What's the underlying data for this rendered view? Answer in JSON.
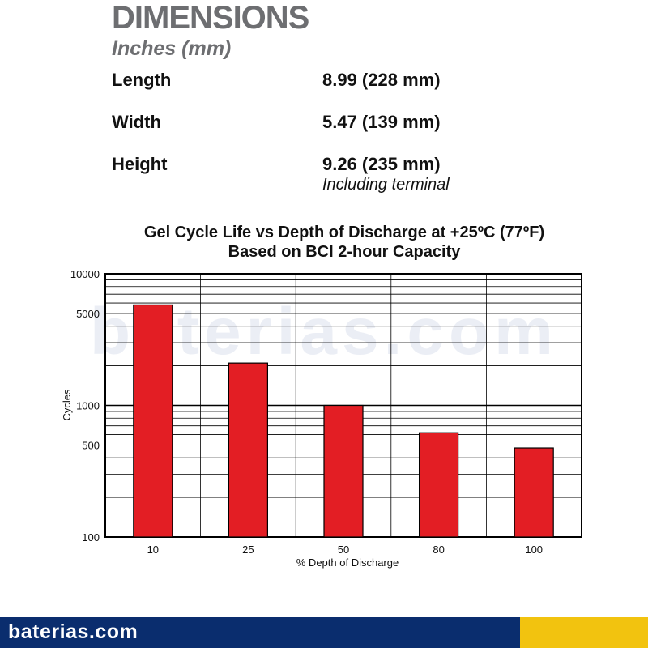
{
  "dimensions": {
    "title": "DIMENSIONS",
    "subtitle": "Inches (mm)",
    "rows": [
      {
        "label": "Length",
        "value": "8.99 (228 mm)",
        "note": ""
      },
      {
        "label": "Width",
        "value": "5.47 (139 mm)",
        "note": ""
      },
      {
        "label": "Height",
        "value": "9.26 (235 mm)",
        "note": "Including terminal"
      }
    ]
  },
  "watermark": "baterias.com",
  "footer": {
    "logo_text": "baterias.com"
  },
  "colors": {
    "bar": "#e31e24",
    "footer_blue": "#0a2d6e",
    "footer_yellow": "#f2c30f",
    "title_gray": "#6d6e71"
  },
  "chart_data": {
    "type": "bar",
    "title": "Gel Cycle Life vs Depth of Discharge at +25ºC (77ºF)",
    "subtitle": "Based on BCI 2-hour Capacity",
    "categories": [
      "10",
      "25",
      "50",
      "80",
      "100"
    ],
    "values": [
      5800,
      2100,
      1000,
      620,
      475
    ],
    "xlabel": "% Depth of Discharge",
    "ylabel": "Cycles",
    "yscale": "log",
    "ylim": [
      100,
      10000
    ],
    "yticks": [
      "100",
      "500",
      "1000",
      "5000",
      "10000"
    ],
    "grid": true
  }
}
